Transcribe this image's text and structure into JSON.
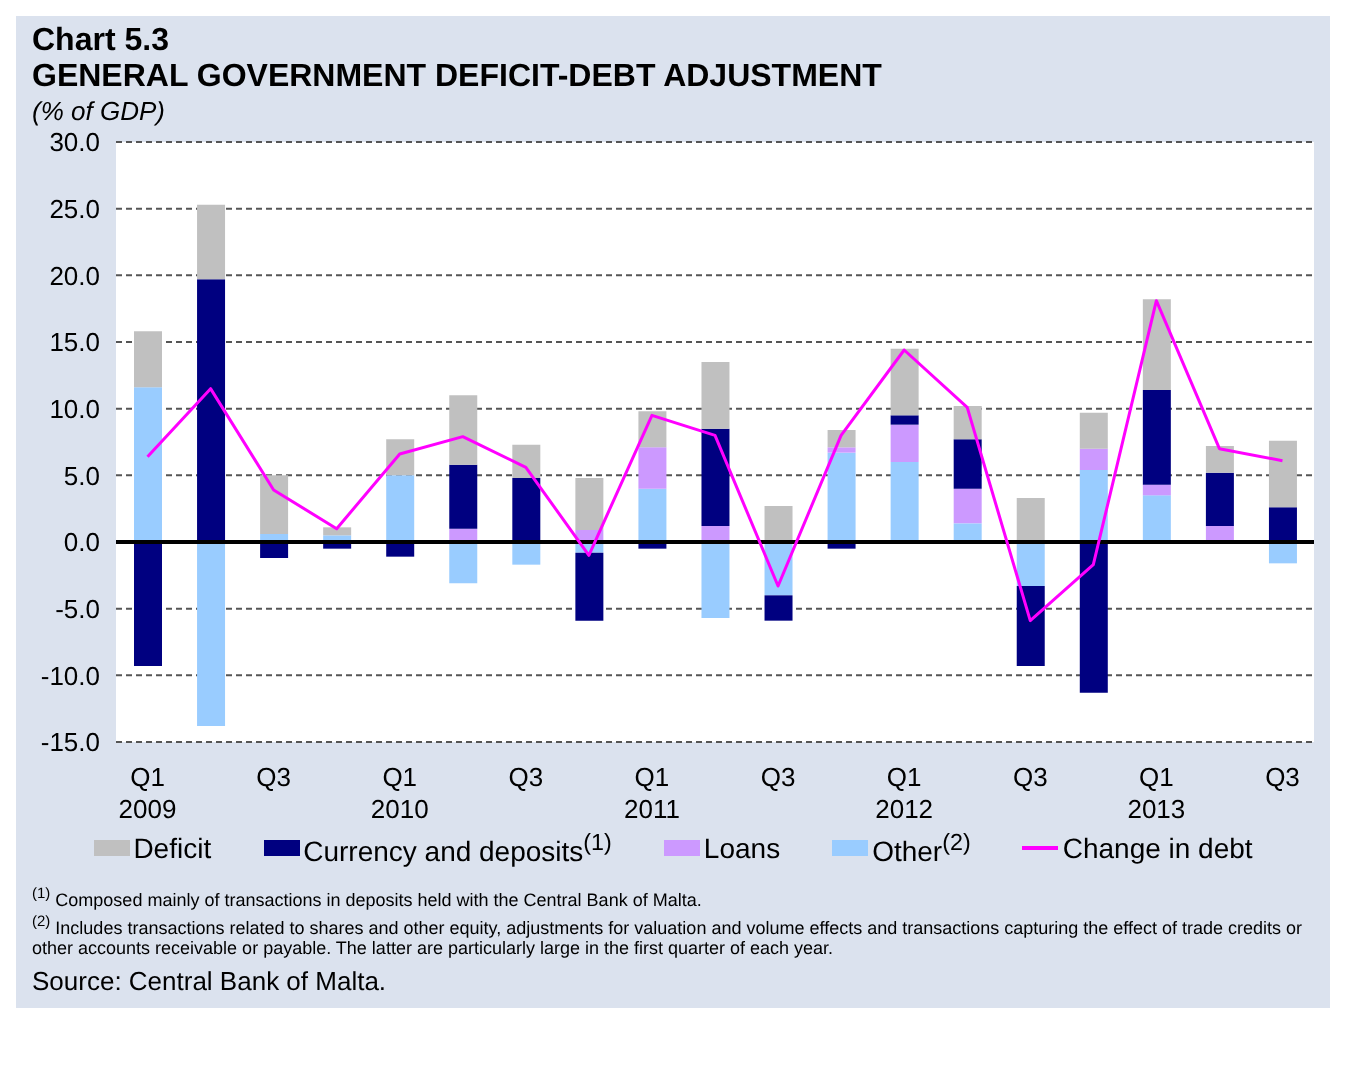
{
  "chart_data": {
    "type": "bar",
    "title": "Chart 5.3",
    "subtitle": "GENERAL GOVERNMENT DEFICIT-DEBT ADJUSTMENT",
    "ylabel": "(% of GDP)",
    "categories": [
      "Q1\n2009",
      null,
      "Q3",
      null,
      "Q1\n2010",
      null,
      "Q3",
      null,
      "Q1\n2011",
      null,
      "Q3",
      null,
      "Q1\n2012",
      null,
      "Q3",
      null,
      "Q1\n2013",
      null,
      "Q3"
    ],
    "stacked": true,
    "series": [
      {
        "name": "Other$^{(2)}$",
        "color": "#99ccff",
        "values": [
          11.6,
          -13.8,
          0.6,
          0.5,
          5.0,
          -3.1,
          -1.7,
          -0.8,
          4.0,
          -5.7,
          -4.0,
          6.7,
          6.0,
          1.4,
          -3.3,
          5.4,
          3.5,
          null,
          -1.6
        ]
      },
      {
        "name": "Loans",
        "color": "#cc99ff",
        "values": [
          null,
          null,
          null,
          null,
          null,
          1.0,
          null,
          0.9,
          3.1,
          1.2,
          null,
          0.4,
          2.8,
          2.6,
          null,
          1.6,
          0.8,
          1.2,
          null
        ]
      },
      {
        "name": "Currency and deposits$^{(1)}$",
        "color": "#000080",
        "values": [
          -9.3,
          19.7,
          -1.2,
          -0.5,
          -1.1,
          4.8,
          4.8,
          -5.1,
          -0.5,
          7.3,
          -1.9,
          -0.5,
          0.7,
          3.7,
          -6.0,
          -11.3,
          7.1,
          4.0,
          2.6
        ]
      },
      {
        "name": "Deficit",
        "color": "#c0c0c0",
        "values": [
          4.2,
          5.6,
          4.4,
          0.6,
          2.7,
          5.2,
          2.5,
          3.9,
          2.7,
          5.0,
          2.7,
          1.3,
          5.0,
          2.5,
          3.3,
          2.7,
          6.8,
          2.0,
          5.0
        ]
      },
      {
        "name": "Change in debt",
        "type": "line",
        "color": "#ff00ff",
        "values": [
          6.4,
          11.5,
          3.9,
          1.0,
          6.6,
          7.9,
          5.6,
          -1.0,
          9.5,
          8.0,
          -3.3,
          8.0,
          14.4,
          10.1,
          -5.9,
          -1.7,
          18.1,
          7.0,
          6.1
        ]
      }
    ],
    "ylim": [
      -15,
      30
    ],
    "yticks": [
      {
        "value": -15,
        "label": "-15.0"
      },
      {
        "value": -10,
        "label": "-10.0"
      },
      {
        "value": -5,
        "label": "-5.0"
      },
      {
        "value": 0,
        "label": "0.0"
      },
      {
        "value": 5,
        "label": "5.0"
      },
      {
        "value": 10,
        "label": "10.0"
      },
      {
        "value": 15,
        "label": "15.0"
      },
      {
        "value": 20,
        "label": "20.0"
      },
      {
        "value": 25,
        "label": "25.0"
      },
      {
        "value": 30,
        "label": "30.0"
      }
    ],
    "grid": "y",
    "legend": "bottom",
    "marker": "none",
    "line_style": "solid",
    "ref_lines": [
      {
        "axis": "y",
        "value": 0,
        "color": "#000000"
      }
    ],
    "annotations": [
      "$^{(1)}$ Composed mainly of transactions in deposits held with the Central Bank of Malta.",
      "$^{(2)}$ Includes transactions related  to shares and other equity, adjustments for valuation and volume effects and transactions capturing the effect of trade credits or other accounts receivable or payable. The latter are particularly large in the first quarter of each year.",
      "Source: Central Bank of Malta."
    ]
  }
}
